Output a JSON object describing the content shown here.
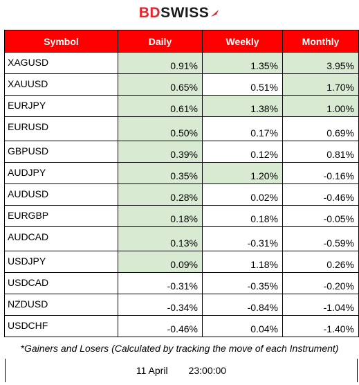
{
  "logo": {
    "part1": "BD",
    "part2": "SWISS"
  },
  "table": {
    "headers": [
      "Symbol",
      "Daily",
      "Weekly",
      "Monthly"
    ],
    "rows": [
      {
        "symbol": "XAGUSD",
        "daily": "0.91%",
        "weekly": "1.35%",
        "monthly": "3.95%"
      },
      {
        "symbol": "XAUUSD",
        "daily": "0.65%",
        "weekly": "0.51%",
        "monthly": "1.70%"
      },
      {
        "symbol": "EURJPY",
        "daily": "0.61%",
        "weekly": "1.38%",
        "monthly": "1.00%"
      },
      {
        "symbol": "EURUSD",
        "daily": "0.50%",
        "weekly": "0.17%",
        "monthly": "0.69%"
      },
      {
        "symbol": "GBPUSD",
        "daily": "0.39%",
        "weekly": "0.12%",
        "monthly": "0.81%"
      },
      {
        "symbol": "AUDJPY",
        "daily": "0.35%",
        "weekly": "1.20%",
        "monthly": "-0.16%"
      },
      {
        "symbol": "AUDUSD",
        "daily": "0.28%",
        "weekly": "0.02%",
        "monthly": "-0.46%"
      },
      {
        "symbol": "EURGBP",
        "daily": "0.18%",
        "weekly": "0.18%",
        "monthly": "-0.05%"
      },
      {
        "symbol": "AUDCAD",
        "daily": "0.13%",
        "weekly": "-0.31%",
        "monthly": "-0.59%"
      },
      {
        "symbol": "USDJPY",
        "daily": "0.09%",
        "weekly": "1.18%",
        "monthly": "0.26%"
      },
      {
        "symbol": "USDCAD",
        "daily": "-0.31%",
        "weekly": "-0.35%",
        "monthly": "-0.20%"
      },
      {
        "symbol": "NZDUSD",
        "daily": "-0.34%",
        "weekly": "-0.84%",
        "monthly": "-1.04%"
      },
      {
        "symbol": "USDCHF",
        "daily": "-0.46%",
        "weekly": "0.04%",
        "monthly": "-1.40%"
      }
    ]
  },
  "highlights": {
    "daily": [
      0,
      1,
      2,
      3,
      4,
      5,
      6,
      7,
      8,
      9
    ],
    "weekly": [
      0,
      2,
      5
    ],
    "monthly": [
      0,
      1,
      2
    ]
  },
  "colors": {
    "header_bg": "#ff0000",
    "positive_bg": "#d9ead3",
    "brand_red": "#e3262f"
  },
  "footer": {
    "note": "*Gainers and Losers (Calculated by tracking the move of each Instrument)",
    "date": "11 April",
    "time": "23:00:00"
  }
}
